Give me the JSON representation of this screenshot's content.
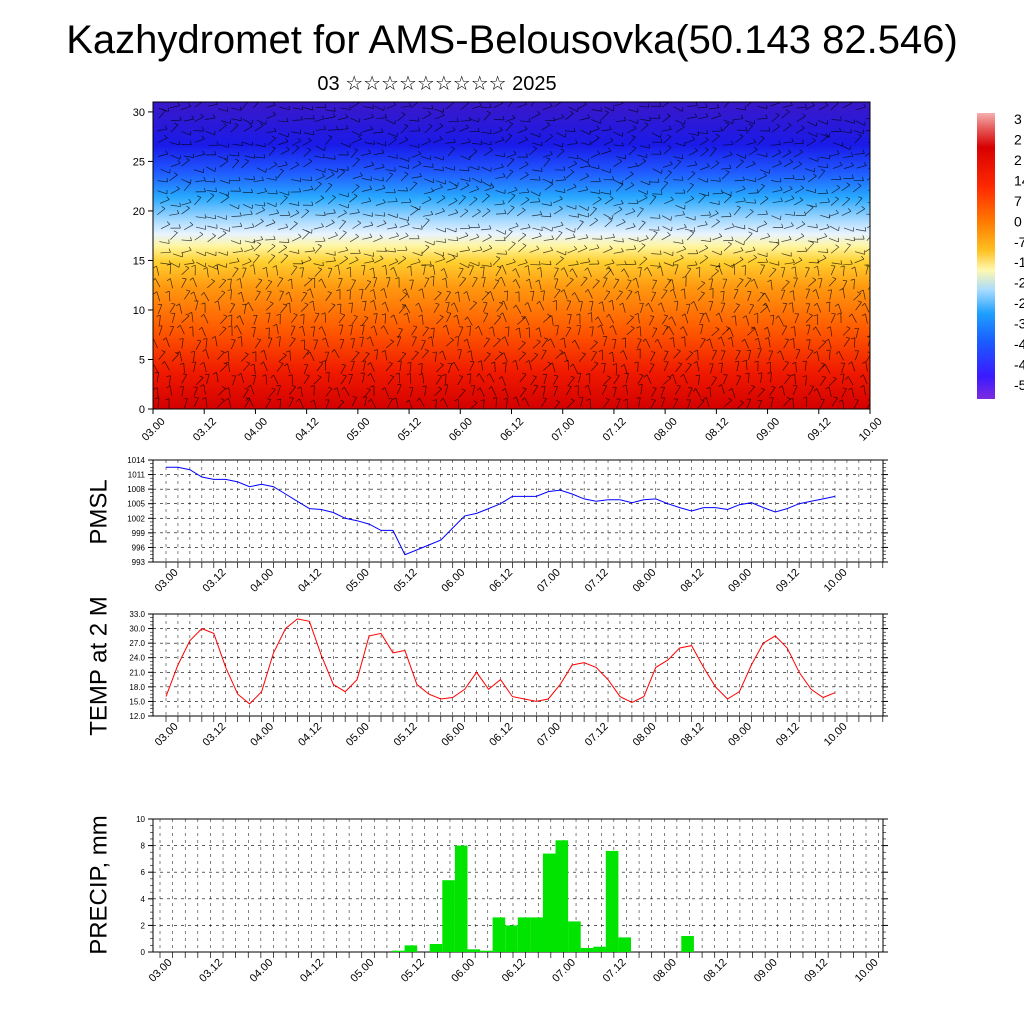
{
  "title": "Kazhydromet for AMS-Belousovka(50.143 82.546)",
  "subtitle": "03 ☆☆☆☆☆☆☆☆☆ 2025",
  "time_labels": [
    "03.00",
    "03.12",
    "04.00",
    "04.12",
    "05.00",
    "05.12",
    "06.00",
    "06.12",
    "07.00",
    "07.12",
    "08.00",
    "08.12",
    "09.00",
    "09.12",
    "10.00"
  ],
  "colorbar_labels": [
    "3",
    "2",
    "2",
    "14",
    "7",
    "0",
    "-7",
    "-1",
    "-2",
    "-2",
    "-3",
    "-4",
    "-4",
    "-5"
  ],
  "colors": {
    "pmsl_line": "#0000ff",
    "temp_line": "#ff0000",
    "precip_bar": "#00e400"
  },
  "chart_data": [
    {
      "type": "heatmap",
      "name": "Temperature cross-section with wind barbs",
      "x_labels": [
        "03.00",
        "03.12",
        "04.00",
        "04.12",
        "05.00",
        "05.12",
        "06.00",
        "06.12",
        "07.00",
        "07.12",
        "08.00",
        "08.12",
        "09.00",
        "09.12",
        "10.00"
      ],
      "y_ticks": [
        "0",
        "5",
        "10",
        "15",
        "20",
        "25",
        "30"
      ],
      "ylim": [
        0,
        31
      ],
      "color_scale_range": [
        -55,
        35
      ]
    },
    {
      "type": "line",
      "ylabel": "PMSL",
      "ylim": [
        993,
        1014
      ],
      "y_ticks": [
        "993",
        "996",
        "999",
        "1002",
        "1005",
        "1008",
        "1011",
        "1014"
      ],
      "values": [
        1012.5,
        1012.5,
        1012,
        1010.5,
        1010,
        1010,
        1009.5,
        1008.5,
        1009,
        1008.5,
        1007,
        1005.5,
        1004,
        1003.8,
        1003.2,
        1002,
        1001.5,
        1000.8,
        999.5,
        999.5,
        994.5,
        995.5,
        996.5,
        997.5,
        1000,
        1002.5,
        1003,
        1004,
        1005,
        1006.5,
        1006.5,
        1006.5,
        1007.5,
        1007.8,
        1007,
        1006,
        1005.5,
        1005.8,
        1005.8,
        1005.2,
        1005.8,
        1006,
        1005,
        1004.2,
        1003.5,
        1004.2,
        1004.2,
        1003.8,
        1004.8,
        1005.2,
        1004.2,
        1003.3,
        1004,
        1005,
        1005.5,
        1006,
        1006.5
      ]
    },
    {
      "type": "line",
      "ylabel": "TEMP at 2 M",
      "ylim": [
        12,
        33
      ],
      "y_ticks": [
        "12.0",
        "15.0",
        "18.0",
        "21.0",
        "24.0",
        "27.0",
        "30.0",
        "33.0"
      ],
      "values": [
        16,
        22.5,
        27.5,
        30,
        29,
        22,
        16.5,
        14.5,
        17,
        25,
        30,
        32,
        31.5,
        24.5,
        18.5,
        17,
        19.5,
        28.5,
        29,
        25,
        25.5,
        18.5,
        16.5,
        15.5,
        15.8,
        17.5,
        21,
        17.5,
        19.5,
        16,
        15.5,
        15,
        15.5,
        18.5,
        22.5,
        23,
        22,
        19.5,
        16,
        14.8,
        16,
        22,
        23.5,
        26,
        26.5,
        22,
        18,
        15.5,
        17,
        22.5,
        27,
        28.5,
        26,
        21,
        17.5,
        15.8,
        16.8
      ]
    },
    {
      "type": "bar",
      "ylabel": "PRECIP, mm",
      "ylim": [
        0,
        10
      ],
      "y_ticks": [
        "0",
        "2",
        "4",
        "6",
        "8",
        "10"
      ],
      "values": [
        0,
        0,
        0,
        0,
        0,
        0,
        0,
        0,
        0,
        0,
        0,
        0,
        0,
        0,
        0,
        0,
        0,
        0,
        0,
        0.1,
        0.5,
        0,
        0.6,
        5.4,
        8,
        0.2,
        0.1,
        2.6,
        2,
        2.6,
        2.6,
        7.4,
        8.4,
        2.3,
        0.3,
        0.4,
        7.6,
        1.1,
        0,
        0,
        0,
        0,
        1.2,
        0,
        0,
        0,
        0,
        0,
        0,
        0,
        0,
        0,
        0,
        0,
        0,
        0,
        0
      ]
    }
  ]
}
